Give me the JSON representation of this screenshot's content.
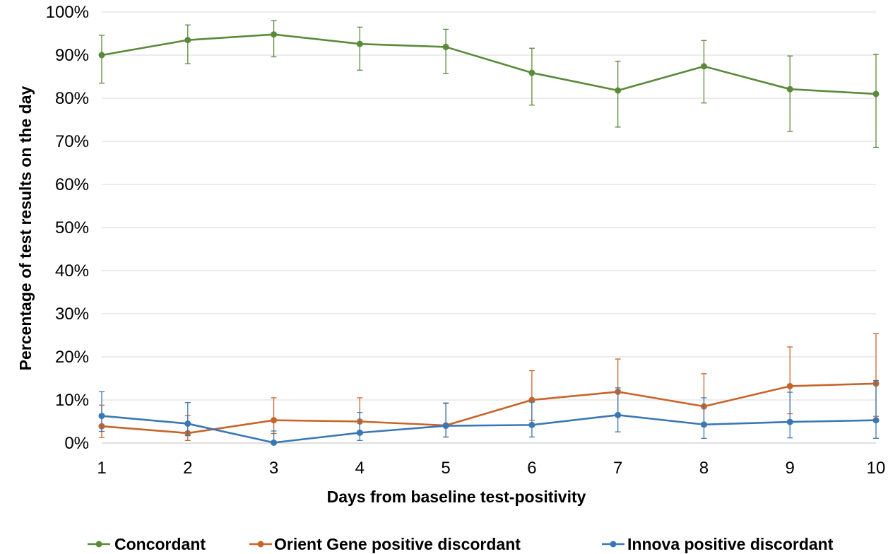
{
  "chart_data": {
    "type": "line",
    "xlabel": "Days from baseline test-positivity",
    "ylabel": "Percentage of test results on the day",
    "x": [
      1,
      2,
      3,
      4,
      5,
      6,
      7,
      8,
      9,
      10
    ],
    "xlim": [
      1,
      10
    ],
    "ylim": [
      0,
      100
    ],
    "yticks": [
      0,
      10,
      20,
      30,
      40,
      50,
      60,
      70,
      80,
      90,
      100
    ],
    "ytick_suffix": "%",
    "grid": "horizontal",
    "legend_position": "bottom",
    "series": [
      {
        "name": "Concordant",
        "color": "#5a8a3a",
        "values": [
          90.0,
          93.5,
          94.8,
          92.6,
          91.9,
          85.9,
          81.8,
          87.4,
          82.1,
          81.0
        ],
        "err_low": [
          83.5,
          88.0,
          89.6,
          86.5,
          85.7,
          78.4,
          73.3,
          78.9,
          72.3,
          68.6
        ],
        "err_high": [
          94.6,
          97.0,
          98.0,
          96.5,
          96.0,
          91.6,
          88.6,
          93.4,
          89.8,
          90.2
        ]
      },
      {
        "name": "Orient Gene positive discordant",
        "color": "#c8642a",
        "values": [
          3.9,
          2.3,
          5.3,
          5.0,
          4.1,
          10.0,
          11.9,
          8.5,
          13.2,
          13.8
        ],
        "err_low": [
          1.3,
          0.6,
          2.2,
          2.0,
          1.4,
          5.3,
          6.3,
          3.9,
          6.8,
          6.2
        ],
        "err_high": [
          8.8,
          6.4,
          10.5,
          10.5,
          9.2,
          16.8,
          19.5,
          16.1,
          22.3,
          25.4
        ]
      },
      {
        "name": "Innova positive discordant",
        "color": "#3a78b4",
        "values": [
          6.3,
          4.5,
          0.1,
          2.4,
          4.0,
          4.2,
          6.5,
          4.3,
          4.9,
          5.3
        ],
        "err_low": [
          2.7,
          1.7,
          0.0,
          0.6,
          1.4,
          1.4,
          2.6,
          1.1,
          1.2,
          1.1
        ],
        "err_high": [
          11.9,
          9.4,
          2.8,
          7.1,
          9.3,
          9.5,
          12.8,
          10.5,
          11.8,
          14.5
        ]
      }
    ]
  }
}
